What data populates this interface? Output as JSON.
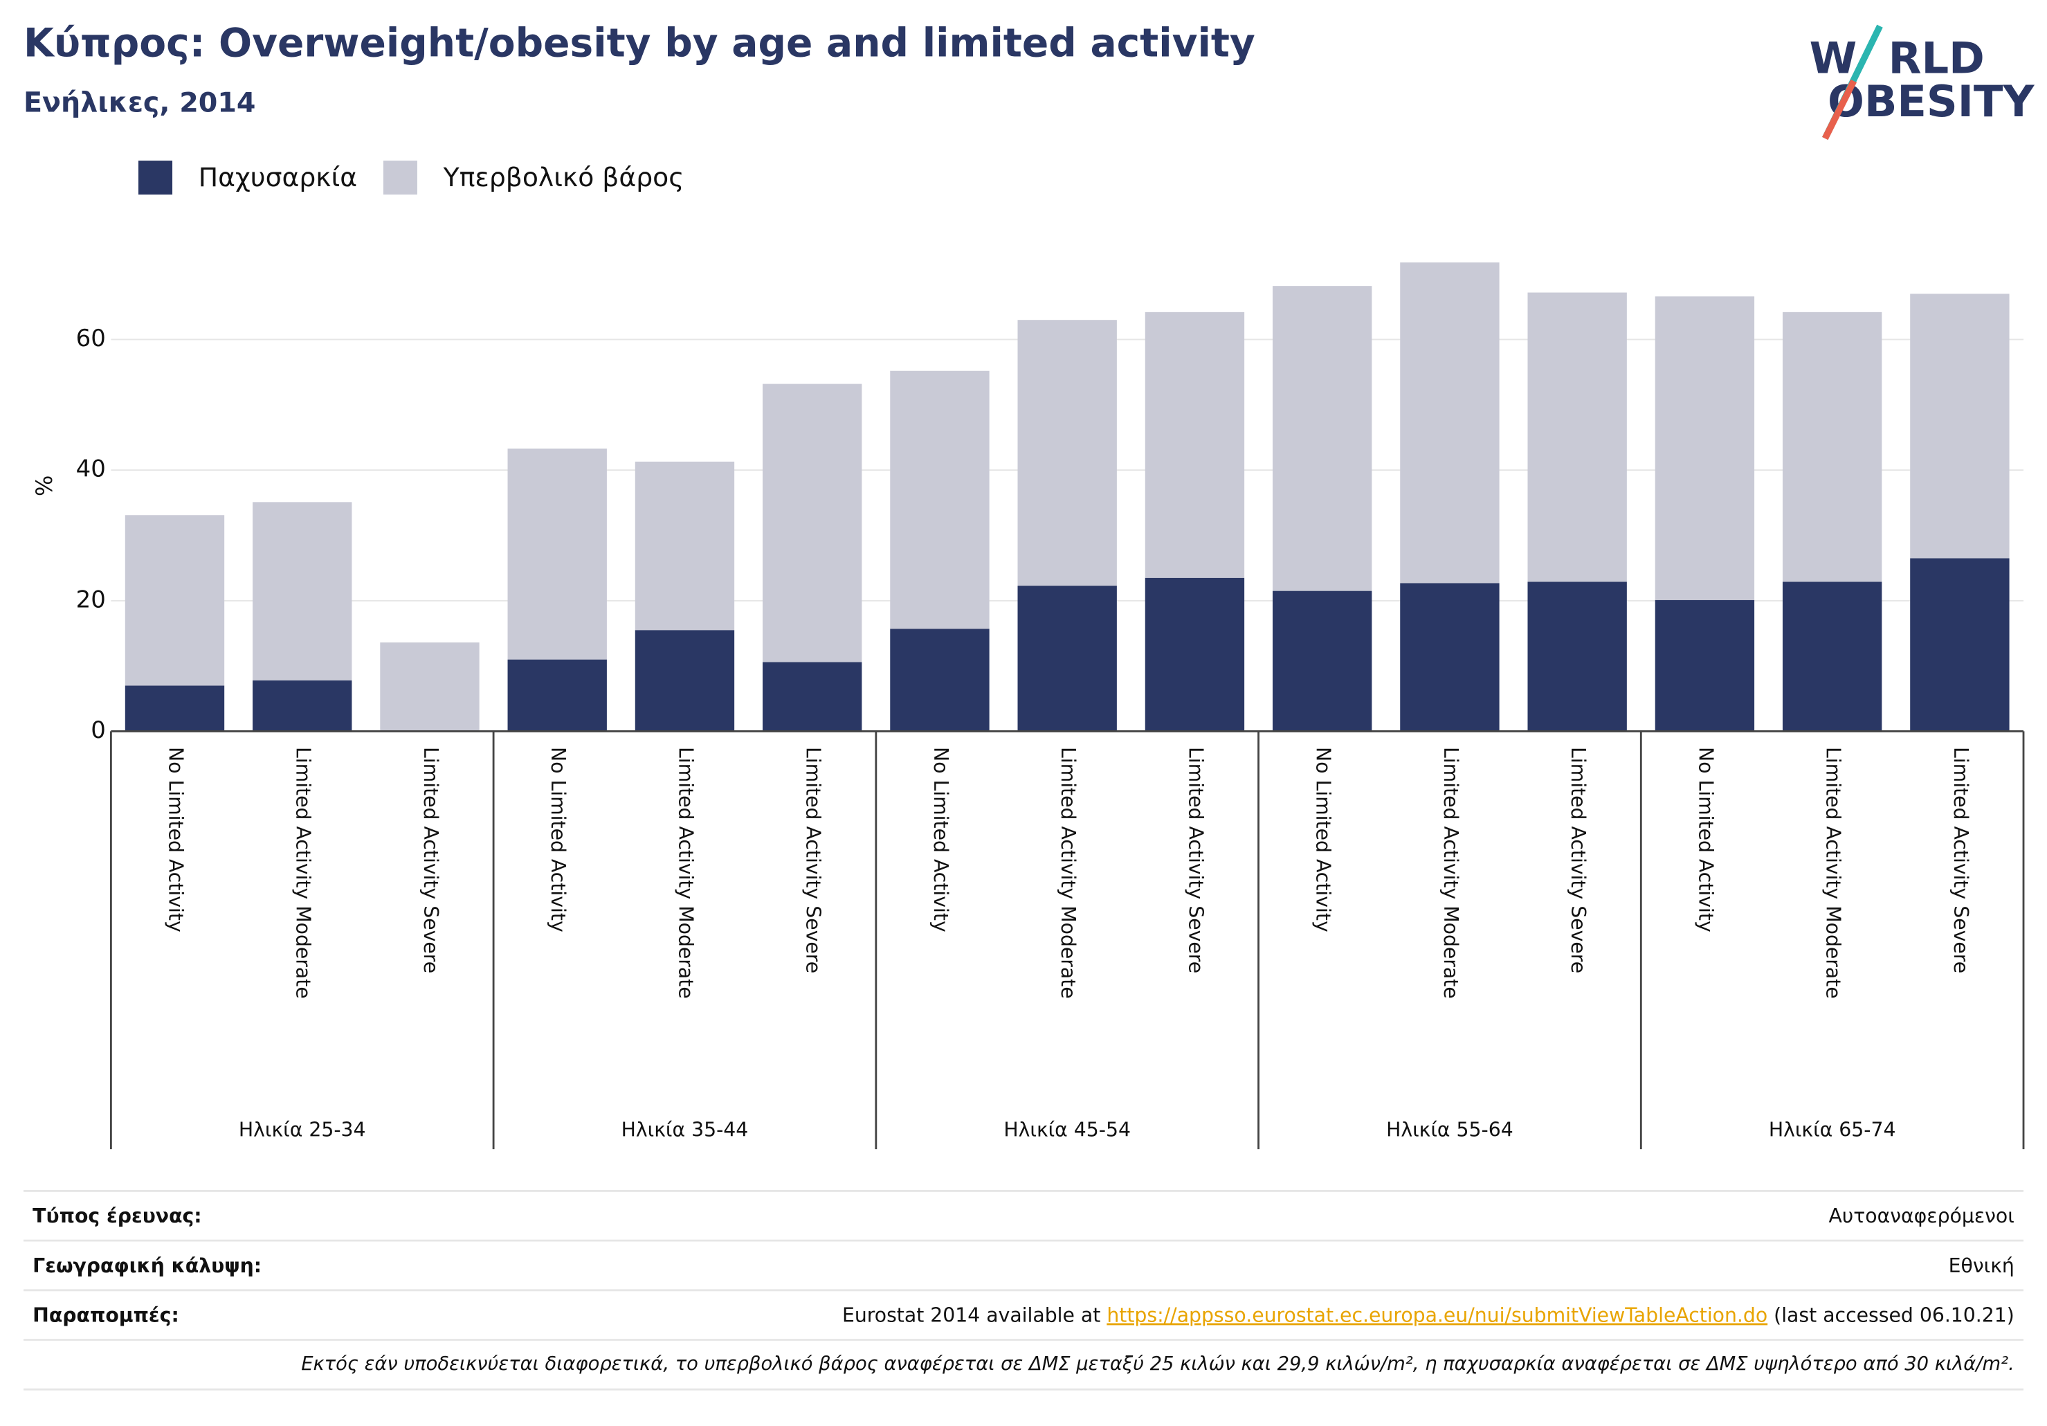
{
  "chart_data": {
    "type": "stacked_bar",
    "title": "Κύπρος: Overweight/obesity by age and limited activity",
    "subtitle": "Ενήλικες, 2014",
    "logo": [
      "W",
      "RLD",
      "OBESITY"
    ],
    "y_label": "%",
    "categories": [
      "No Limited Activity",
      "Limited Activity Moderate",
      "Limited Activity Severe",
      "No Limited Activity",
      "Limited Activity Moderate",
      "Limited Activity Severe",
      "No Limited Activity",
      "Limited Activity Moderate",
      "Limited Activity Severe",
      "No Limited Activity",
      "Limited Activity Moderate",
      "Limited Activity Severe",
      "No Limited Activity",
      "Limited Activity Moderate",
      "Limited Activity Severe"
    ],
    "groups": [
      "Ηλικία 25-34",
      "Ηλικία 35-44",
      "Ηλικία 45-54",
      "Ηλικία 55-64",
      "Ηλικία 65-74"
    ],
    "series": [
      {
        "name": "Παχυσαρκία",
        "color": "#2a3764",
        "values": [
          7.0,
          7.8,
          null,
          11.0,
          15.5,
          10.6,
          15.7,
          22.3,
          23.5,
          21.5,
          22.7,
          22.9,
          20.1,
          22.9,
          26.5
        ]
      },
      {
        "name": "Υπερβολικό βάρος",
        "color": "#c9cad6",
        "values": [
          26.1,
          27.3,
          13.6,
          32.3,
          25.8,
          42.6,
          39.5,
          40.7,
          40.7,
          46.7,
          49.1,
          44.3,
          46.5,
          41.3,
          40.5
        ]
      }
    ],
    "ylim": [
      0,
      79
    ],
    "yticks": [
      0,
      20,
      40,
      60
    ],
    "grid": true,
    "legend": "top-left"
  },
  "footer": {
    "rows": [
      {
        "label": "Τύπος έρευνας:",
        "value": "Αυτοαναφερόμενοι"
      },
      {
        "label": "Γεωγραφική κάλυψη:",
        "value": "Εθνική"
      },
      {
        "label": "Παραπομπές:",
        "value": {
          "text": "Eurostat 2014 available at ",
          "link": "https://appsso.eurostat.ec.europa.eu/nui/submitViewTableAction.do",
          "after": " (last accessed 06.10.21)"
        }
      }
    ],
    "note": "Εκτός εάν υποδεικνύεται διαφορετικά, το υπερβολικό βάρος αναφέρεται σε ΔΜΣ μεταξύ 25 κιλών και 29,9 κιλών/m², η παχυσαρκία αναφέρεται σε ΔΜΣ υψηλότερο από 30 κιλά/m²."
  }
}
